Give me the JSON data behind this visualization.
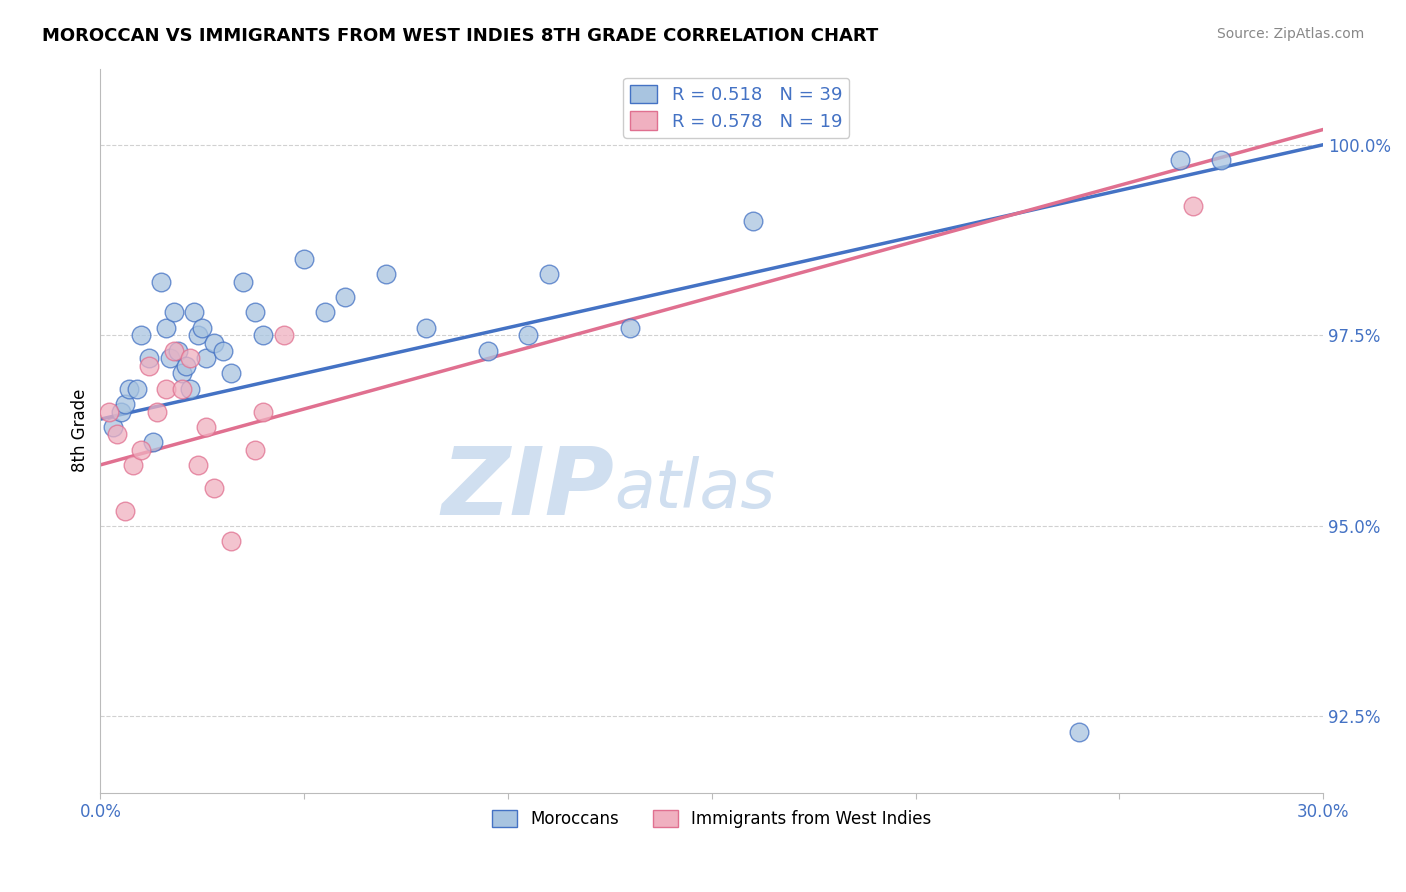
{
  "title": "MOROCCAN VS IMMIGRANTS FROM WEST INDIES 8TH GRADE CORRELATION CHART",
  "source_text": "Source: ZipAtlas.com",
  "ylabel": "8th Grade",
  "xlim": [
    0.0,
    30.0
  ],
  "ylim": [
    91.5,
    101.0
  ],
  "yticks": [
    92.5,
    95.0,
    97.5,
    100.0
  ],
  "xticks": [
    0.0,
    5.0,
    10.0,
    15.0,
    20.0,
    25.0,
    30.0
  ],
  "ytick_labels": [
    "92.5%",
    "95.0%",
    "97.5%",
    "100.0%"
  ],
  "blue_R": "0.518",
  "blue_N": "39",
  "pink_R": "0.578",
  "pink_N": "19",
  "blue_color": "#a8c4e0",
  "pink_color": "#f0b0c0",
  "blue_line_color": "#4472c4",
  "pink_line_color": "#e07090",
  "watermark_zip": "ZIP",
  "watermark_atlas": "atlas",
  "watermark_color": "#d0dff0",
  "legend_label_blue": "Moroccans",
  "legend_label_pink": "Immigrants from West Indies",
  "blue_points_x": [
    0.3,
    0.5,
    0.6,
    0.7,
    0.9,
    1.0,
    1.2,
    1.3,
    1.5,
    1.6,
    1.7,
    1.8,
    1.9,
    2.0,
    2.1,
    2.2,
    2.3,
    2.4,
    2.5,
    2.6,
    2.8,
    3.0,
    3.2,
    3.5,
    3.8,
    4.0,
    5.0,
    5.5,
    6.0,
    7.0,
    8.0,
    9.5,
    10.5,
    11.0,
    13.0,
    16.0,
    24.0,
    26.5,
    27.5
  ],
  "blue_points_y": [
    96.3,
    96.5,
    96.6,
    96.8,
    96.8,
    97.5,
    97.2,
    96.1,
    98.2,
    97.6,
    97.2,
    97.8,
    97.3,
    97.0,
    97.1,
    96.8,
    97.8,
    97.5,
    97.6,
    97.2,
    97.4,
    97.3,
    97.0,
    98.2,
    97.8,
    97.5,
    98.5,
    97.8,
    98.0,
    98.3,
    97.6,
    97.3,
    97.5,
    98.3,
    97.6,
    99.0,
    92.3,
    99.8,
    99.8
  ],
  "pink_points_x": [
    0.2,
    0.4,
    0.6,
    0.8,
    1.0,
    1.2,
    1.4,
    1.6,
    1.8,
    2.0,
    2.2,
    2.4,
    2.6,
    2.8,
    3.2,
    3.8,
    4.0,
    4.5,
    26.8
  ],
  "pink_points_y": [
    96.5,
    96.2,
    95.2,
    95.8,
    96.0,
    97.1,
    96.5,
    96.8,
    97.3,
    96.8,
    97.2,
    95.8,
    96.3,
    95.5,
    94.8,
    96.0,
    96.5,
    97.5,
    99.2
  ],
  "blue_trend_x": [
    0.0,
    30.0
  ],
  "blue_trend_y": [
    96.4,
    100.0
  ],
  "pink_trend_x": [
    0.0,
    30.0
  ],
  "pink_trend_y": [
    95.8,
    100.2
  ],
  "figsize": [
    14.06,
    8.92
  ],
  "dpi": 100
}
